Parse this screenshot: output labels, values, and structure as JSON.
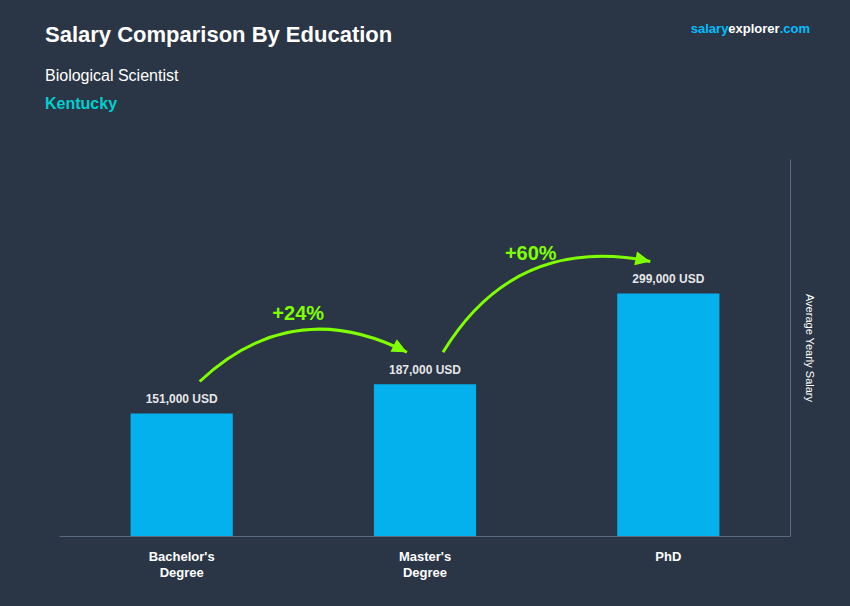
{
  "chart_data": {
    "type": "bar",
    "title": "Salary Comparison By Education",
    "subtitle": "Biological Scientist",
    "location": {
      "text": "Kentucky",
      "color": "#00CFCF"
    },
    "watermark": [
      {
        "text": "salary",
        "color": "#00BFFF"
      },
      {
        "text": "explorer",
        "color": "#FFFFFF"
      },
      {
        "text": ".com",
        "color": "#00BFFF"
      }
    ],
    "y_label": "Average Yearly Salary",
    "categories": [
      "Bachelor's\nDegree",
      "Master's\nDegree",
      "PhD"
    ],
    "values": [
      151000,
      187000,
      299000
    ],
    "value_labels": [
      "151,000 USD",
      "187,000 USD",
      "299,000 USD"
    ],
    "data_labels": true,
    "color": "#00BFFF",
    "text_color": "#FFFFFF",
    "background_color": "#2a3545",
    "annotations": [
      {
        "text": "+24%",
        "from": "Bachelor's\nDegree",
        "to": "Master's\nDegree",
        "color": "#7FFF00"
      },
      {
        "text": "+60%",
        "from": "Master's\nDegree",
        "to": "PhD",
        "color": "#7FFF00"
      }
    ],
    "ylim": [
      0,
      463450
    ],
    "tick_labels": "x",
    "grid": false
  }
}
